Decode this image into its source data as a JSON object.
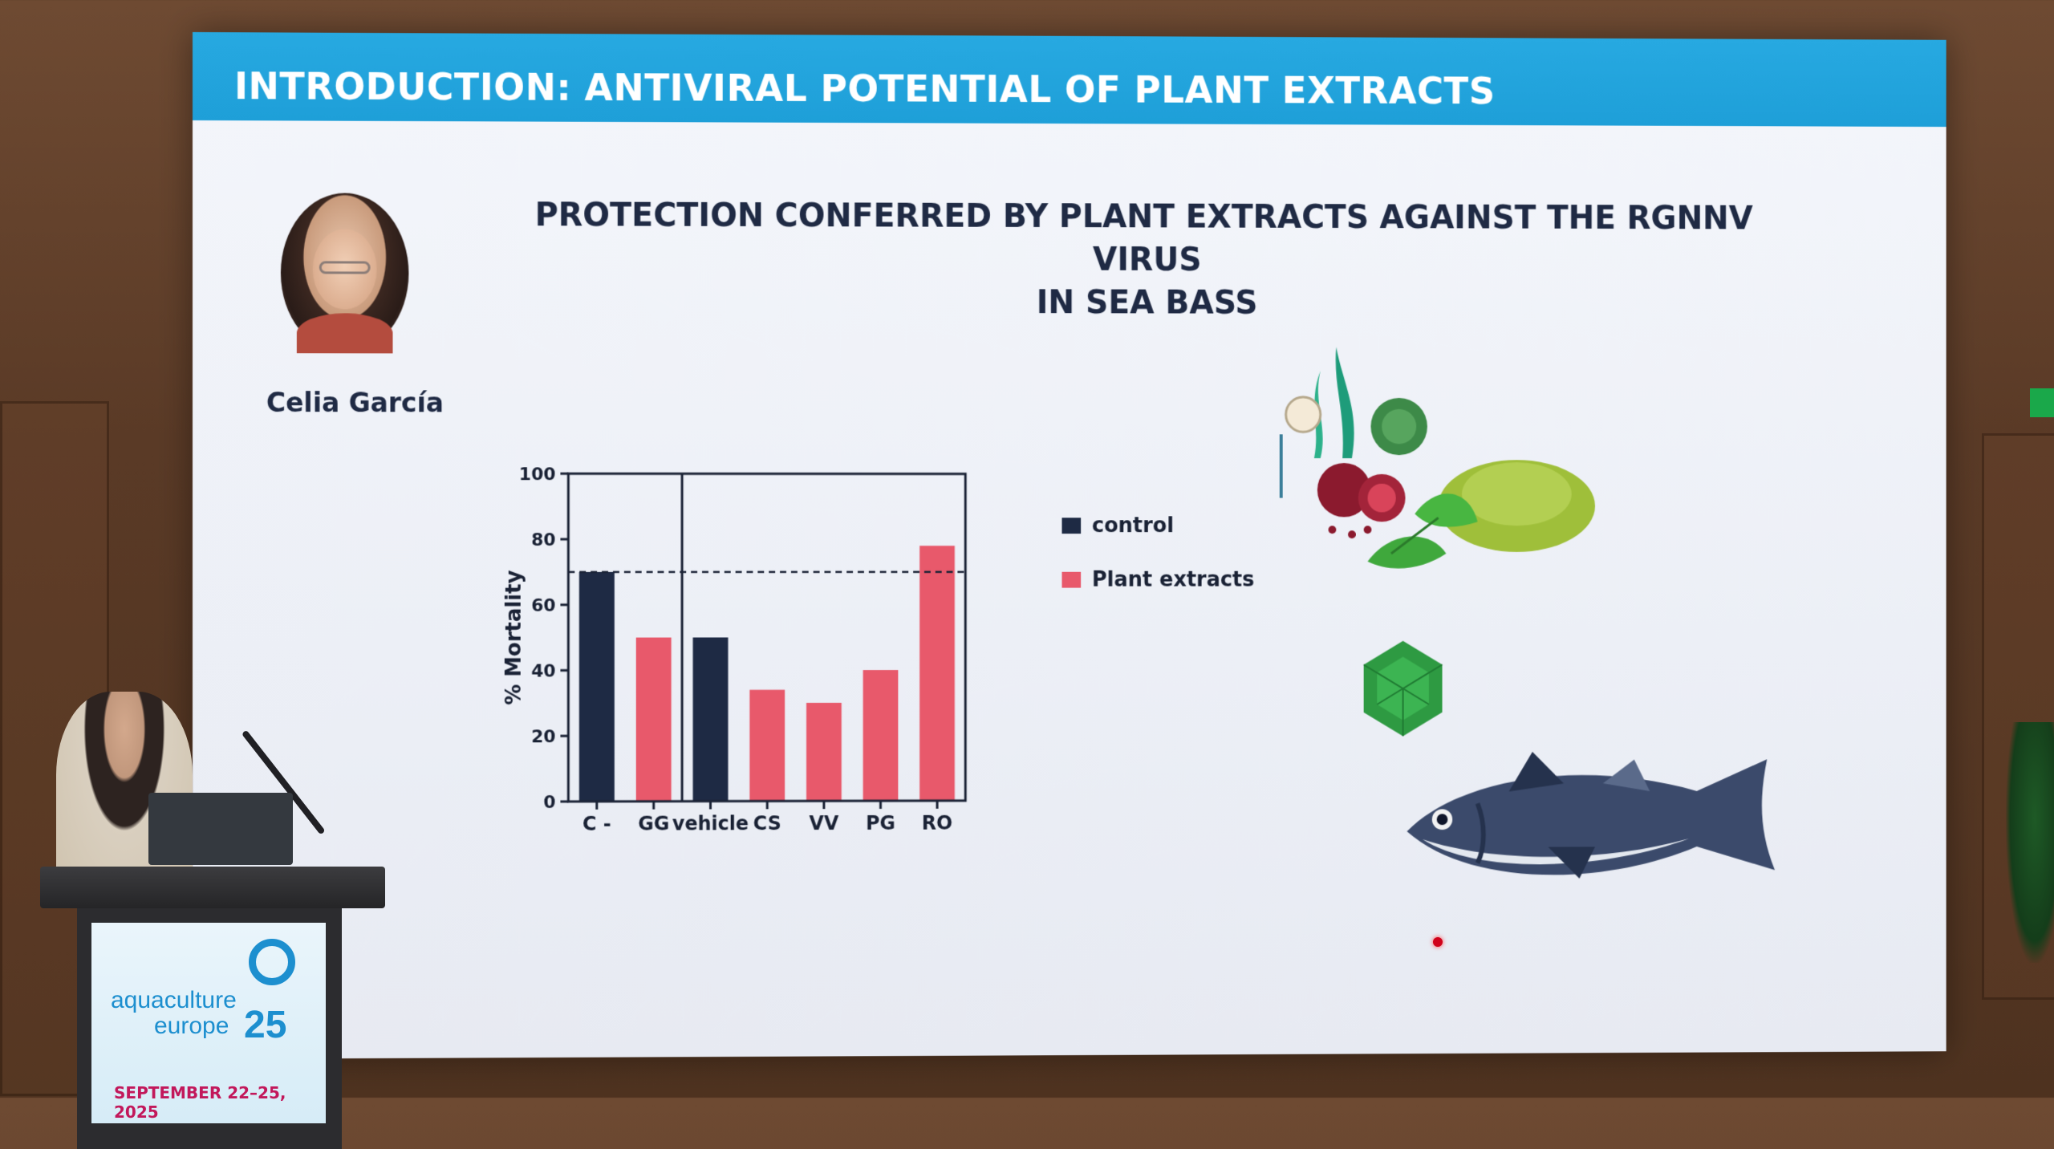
{
  "slide": {
    "header": "INTRODUCTION: ANTIVIRAL POTENTIAL OF PLANT EXTRACTS",
    "title_line1": "PROTECTION CONFERRED BY PLANT EXTRACTS AGAINST THE RGNNV VIRUS",
    "title_line2": "IN SEA BASS",
    "presenter": "Celia García"
  },
  "colors": {
    "header_blue": "#1e9fd8",
    "control": "#1e2a44",
    "plant_extracts": "#e8596b"
  },
  "chart_data": {
    "type": "bar",
    "categories": [
      "C -",
      "GG",
      "vehicle",
      "CS",
      "VV",
      "PG",
      "RO"
    ],
    "series": [
      {
        "name": "control",
        "values": [
          70,
          null,
          50,
          null,
          null,
          null,
          null
        ]
      },
      {
        "name": "Plant extracts",
        "values": [
          null,
          50,
          null,
          34,
          30,
          40,
          78
        ]
      }
    ],
    "values": [
      70,
      50,
      50,
      34,
      30,
      40,
      78
    ],
    "ylabel": "% Mortality",
    "ylim": [
      0,
      100
    ],
    "yticks": [
      "0",
      "20",
      "40",
      "60",
      "80",
      "100"
    ],
    "reference_line": 70,
    "legend": [
      "control",
      "Plant extracts"
    ],
    "legend_position": "right"
  },
  "podium": {
    "brand_line1": "aquaculture",
    "brand_line2": "europe",
    "brand_year": "25",
    "dates": "SEPTEMBER 22–25, 2025"
  },
  "icons": [
    "plants-icon",
    "green-powder-icon",
    "virus-icon",
    "sea-bass-icon"
  ]
}
